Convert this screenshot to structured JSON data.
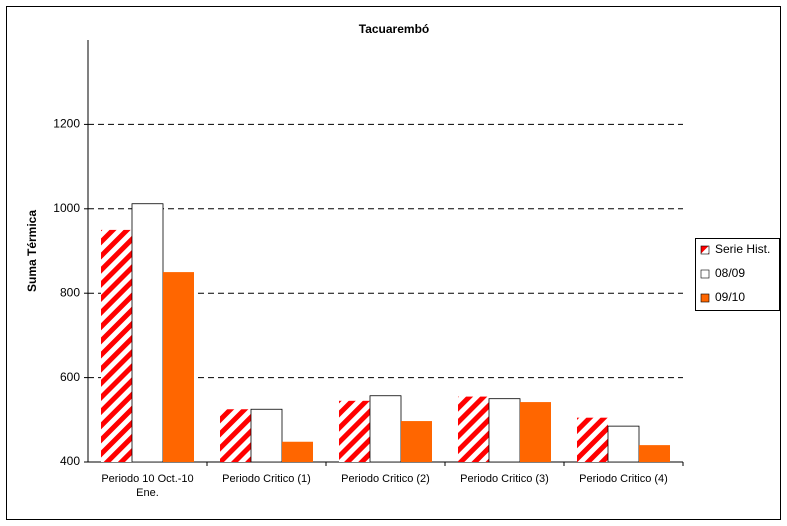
{
  "chart_data": {
    "type": "bar",
    "title": "Tacuarembó",
    "y_label": "Suma Térmica",
    "categories": [
      "Periodo  10 Oct.-10 Ene.",
      "Periodo Critico (1)",
      "Periodo Critico (2)",
      "Periodo Critico (3)",
      "Periodo Critico (4)"
    ],
    "series": [
      {
        "name": "Serie Hist.",
        "color": "#ff0000",
        "values": [
          950,
          525,
          545,
          555,
          505
        ]
      },
      {
        "name": "08/09",
        "color": "#ffffff",
        "values": [
          1012,
          525,
          557,
          550,
          485
        ]
      },
      {
        "name": "09/10",
        "color": "#ff6600",
        "values": [
          850,
          448,
          497,
          542,
          440
        ]
      }
    ],
    "ylim": [
      400,
      1400
    ],
    "yticks": [
      400,
      600,
      800,
      1000,
      1200
    ],
    "grid": true,
    "legend": "right"
  }
}
